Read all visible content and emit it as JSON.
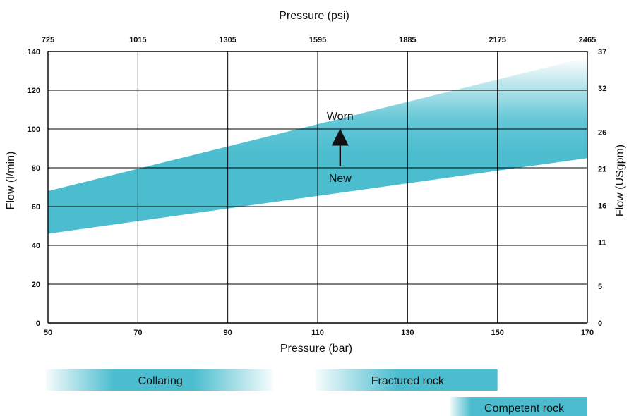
{
  "chart_data": {
    "type": "area",
    "xlabel_bottom": "Pressure (bar)",
    "xlabel_top": "Pressure (psi)",
    "ylabel_left": "Flow (l/min)",
    "ylabel_right": "Flow (USgpm)",
    "xlim": [
      50,
      170
    ],
    "ylim": [
      0,
      140
    ],
    "x_ticks": [
      50,
      70,
      90,
      110,
      130,
      150,
      170
    ],
    "x_ticks_top": [
      "725",
      "1015",
      "1305",
      "1595",
      "1885",
      "2175",
      "2465"
    ],
    "y_ticks": [
      0,
      20,
      40,
      60,
      80,
      100,
      120,
      140
    ],
    "y_ticks_right": [
      {
        "value": 0,
        "label": "0"
      },
      {
        "value": 19,
        "label": "5"
      },
      {
        "value": 41.6,
        "label": "11"
      },
      {
        "value": 60.6,
        "label": "16"
      },
      {
        "value": 79.5,
        "label": "21"
      },
      {
        "value": 98.4,
        "label": "26"
      },
      {
        "value": 121.1,
        "label": "32"
      },
      {
        "value": 140,
        "label": "37"
      }
    ],
    "grid": true,
    "series": [
      {
        "x": [
          50,
          170
        ],
        "values": [
          46,
          85
        ]
      },
      {
        "x": [
          50,
          170
        ],
        "values": [
          68,
          137
        ]
      }
    ],
    "annotations": [
      {
        "text": "Worn",
        "x": 115,
        "y": 107
      },
      {
        "text": "New",
        "x": 115,
        "y": 75
      },
      {
        "arrow_from": [
          115,
          81
        ],
        "arrow_to": [
          115,
          98
        ]
      }
    ],
    "operating_ranges": [
      {
        "label": "Collaring",
        "x_start": 50,
        "x_end": 100,
        "row": 0,
        "fade_both": true
      },
      {
        "label": "Fractured rock",
        "x_start": 110,
        "x_end": 150,
        "row": 0,
        "fade_both": false
      },
      {
        "label": "Competent rock",
        "x_start": 140,
        "x_end": 170,
        "row": 1,
        "fade_both": false
      }
    ]
  },
  "colors": {
    "band": "#4BBDCF",
    "grid": "#000000",
    "text": "#111111"
  }
}
